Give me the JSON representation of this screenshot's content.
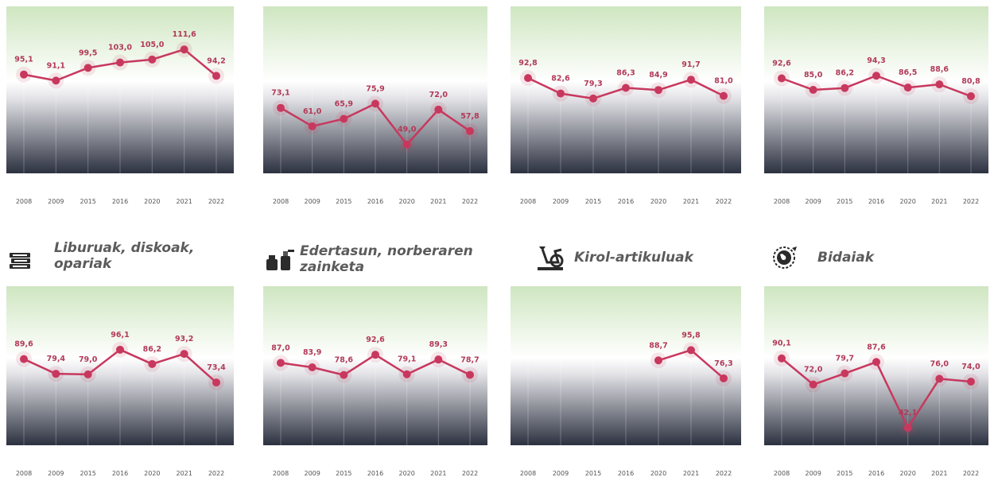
{
  "colors": {
    "line": "#c8385e",
    "label": "#b23a58",
    "tick": "#555555",
    "title": "#5b5b5b"
  },
  "chart_data": [
    {
      "type": "line",
      "title": "",
      "categories": [
        "2008",
        "2009",
        "2015",
        "2016",
        "2020",
        "2021",
        "2022"
      ],
      "series": [
        {
          "values": [
            95.1,
            91.1,
            99.5,
            103.0,
            105.0,
            111.6,
            94.2
          ],
          "labels": [
            "95,1",
            "91,1",
            "99,5",
            "103,0",
            "105,0",
            "111,6",
            "94,2"
          ]
        }
      ]
    },
    {
      "type": "line",
      "title": "",
      "categories": [
        "2008",
        "2009",
        "2015",
        "2016",
        "2020",
        "2021",
        "2022"
      ],
      "series": [
        {
          "values": [
            73.1,
            61.0,
            65.9,
            75.9,
            49.0,
            72.0,
            57.8
          ],
          "labels": [
            "73,1",
            "61,0",
            "65,9",
            "75,9",
            "49,0",
            "72,0",
            "57,8"
          ]
        }
      ]
    },
    {
      "type": "line",
      "title": "",
      "categories": [
        "2008",
        "2009",
        "2015",
        "2016",
        "2020",
        "2021",
        "2022"
      ],
      "series": [
        {
          "values": [
            92.8,
            82.6,
            79.3,
            86.3,
            84.9,
            91.7,
            81.0
          ],
          "labels": [
            "92,8",
            "82,6",
            "79,3",
            "86,3",
            "84,9",
            "91,7",
            "81,0"
          ]
        }
      ]
    },
    {
      "type": "line",
      "title": "",
      "categories": [
        "2008",
        "2009",
        "2015",
        "2016",
        "2020",
        "2021",
        "2022"
      ],
      "series": [
        {
          "values": [
            92.6,
            85.0,
            86.2,
            94.3,
            86.5,
            88.6,
            80.8
          ],
          "labels": [
            "92,6",
            "85,0",
            "86,2",
            "94,3",
            "86,5",
            "88,6",
            "80,8"
          ]
        }
      ]
    },
    {
      "type": "line",
      "title": "Liburuak, diskoak, opariak",
      "categories": [
        "2008",
        "2009",
        "2015",
        "2016",
        "2020",
        "2021",
        "2022"
      ],
      "series": [
        {
          "values": [
            89.6,
            79.4,
            79.0,
            96.1,
            86.2,
            93.2,
            73.4
          ],
          "labels": [
            "89,6",
            "79,4",
            "79,0",
            "96,1",
            "86,2",
            "93,2",
            "73,4"
          ]
        }
      ]
    },
    {
      "type": "line",
      "title": "Edertasun, norberaren zainketa",
      "categories": [
        "2008",
        "2009",
        "2015",
        "2016",
        "2020",
        "2021",
        "2022"
      ],
      "series": [
        {
          "values": [
            87.0,
            83.9,
            78.6,
            92.6,
            79.1,
            89.3,
            78.7
          ],
          "labels": [
            "87,0",
            "83,9",
            "78,6",
            "92,6",
            "79,1",
            "89,3",
            "78,7"
          ]
        }
      ]
    },
    {
      "type": "line",
      "title": "Kirol-artikuluak",
      "categories": [
        "2008",
        "2009",
        "2015",
        "2016",
        "2020",
        "2021",
        "2022"
      ],
      "series": [
        {
          "values": [
            null,
            null,
            null,
            null,
            88.7,
            95.8,
            76.3
          ],
          "labels": [
            "",
            "",
            "",
            "",
            "88,7",
            "95,8",
            "76,3"
          ]
        }
      ]
    },
    {
      "type": "line",
      "title": "Bidaiak",
      "categories": [
        "2008",
        "2009",
        "2015",
        "2016",
        "2020",
        "2021",
        "2022"
      ],
      "series": [
        {
          "values": [
            90.1,
            72.0,
            79.7,
            87.6,
            42.1,
            76.0,
            74.0
          ],
          "labels": [
            "90,1",
            "72,0",
            "79,7",
            "87,6",
            "42,1",
            "76,0",
            "74,0"
          ]
        }
      ]
    }
  ],
  "icons": [
    "books-icon",
    "cosmetics-icon",
    "exercise-bike-icon",
    "globe-travel-icon"
  ]
}
